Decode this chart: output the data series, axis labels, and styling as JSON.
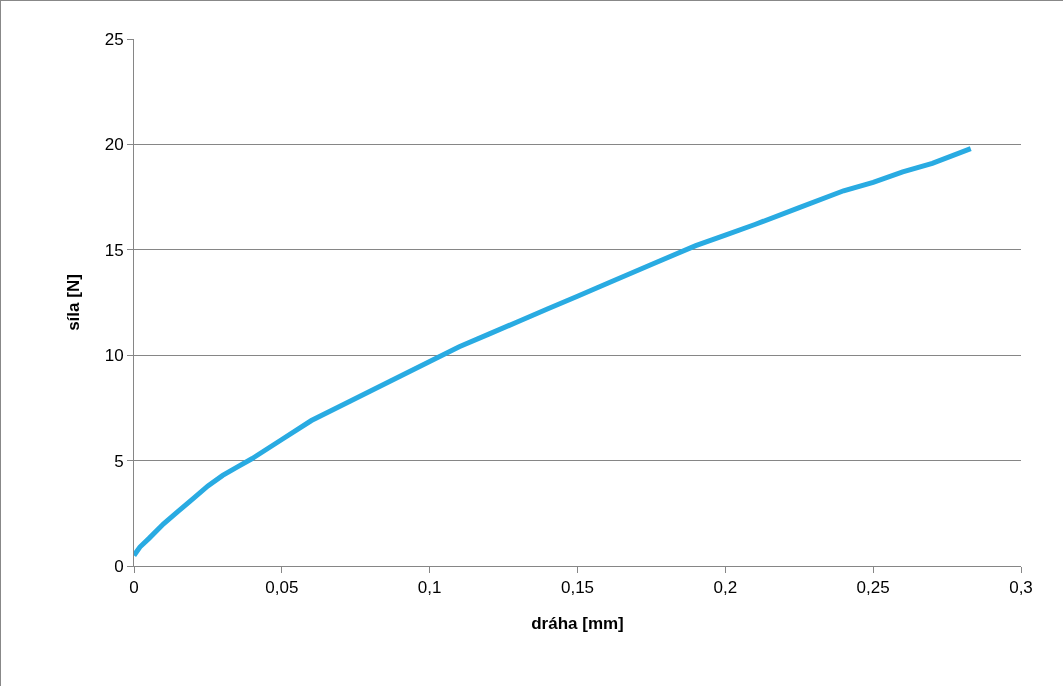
{
  "chart_data": {
    "type": "line",
    "xlabel": "dráha [mm]",
    "ylabel": "síla [N]",
    "x": [
      0,
      0.002,
      0.005,
      0.01,
      0.015,
      0.02,
      0.025,
      0.03,
      0.035,
      0.04,
      0.05,
      0.06,
      0.07,
      0.08,
      0.09,
      0.1,
      0.11,
      0.12,
      0.13,
      0.14,
      0.15,
      0.16,
      0.175,
      0.19,
      0.2,
      0.21,
      0.225,
      0.24,
      0.25,
      0.26,
      0.27,
      0.283
    ],
    "series": [
      {
        "color": "#29abe2",
        "values": [
          0.5,
          0.9,
          1.3,
          2.0,
          2.6,
          3.2,
          3.8,
          4.3,
          4.7,
          5.1,
          6.0,
          6.9,
          7.6,
          8.3,
          9.0,
          9.7,
          10.4,
          11.0,
          11.6,
          12.2,
          12.8,
          13.4,
          14.3,
          15.2,
          15.7,
          16.2,
          17.0,
          17.8,
          18.2,
          18.7,
          19.1,
          19.8
        ]
      }
    ],
    "xlim": [
      0,
      0.3
    ],
    "xticks": [
      {
        "value": 0,
        "label": "0"
      },
      {
        "value": 0.05,
        "label": "0,05"
      },
      {
        "value": 0.1,
        "label": "0,1"
      },
      {
        "value": 0.15,
        "label": "0,15"
      },
      {
        "value": 0.2,
        "label": "0,2"
      },
      {
        "value": 0.25,
        "label": "0,25"
      },
      {
        "value": 0.3,
        "label": "0,3"
      }
    ],
    "ylim": [
      0,
      25
    ],
    "yticks": [
      0,
      5,
      10,
      15,
      20,
      25
    ],
    "grid": "y",
    "legend": false,
    "line_style": "solid"
  }
}
